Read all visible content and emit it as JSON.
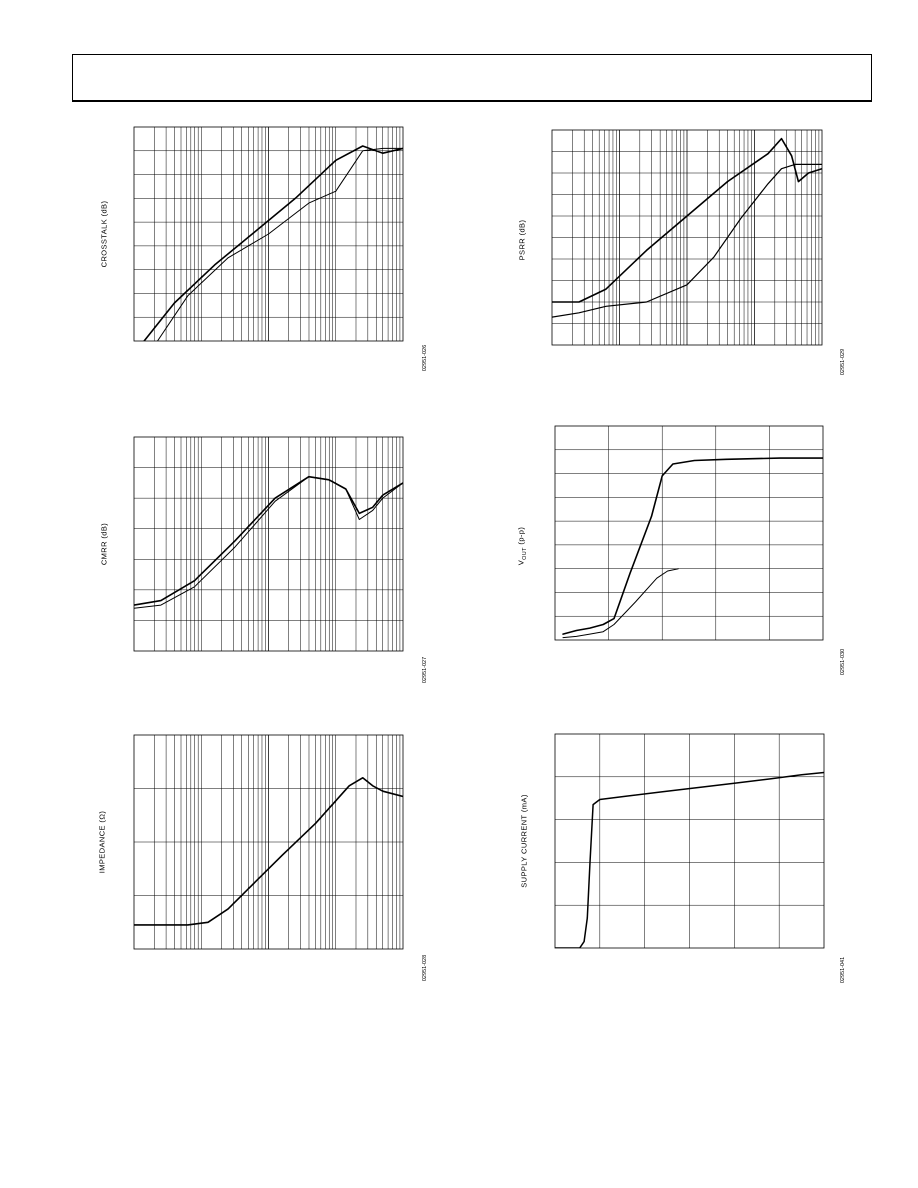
{
  "charts": [
    {
      "id": "crosstalk",
      "ylabel": "CROSSTALK (dB)",
      "figure_code": "02951-026"
    },
    {
      "id": "psrr",
      "ylabel": "PSRR (dB)",
      "figure_code": "02951-029"
    },
    {
      "id": "cmrr",
      "ylabel": "CMRR (dB)",
      "figure_code": "02951-027"
    },
    {
      "id": "vout",
      "ylabel_main": "V",
      "ylabel_sub": "OUT",
      "ylabel_tail": " (p-p)",
      "figure_code": "02951-030"
    },
    {
      "id": "impedance",
      "ylabel": "IMPEDANCE (Ω)",
      "figure_code": "02951-028"
    },
    {
      "id": "supply",
      "ylabel": "SUPPLY CURRENT (mA)",
      "figure_code": "02951-041"
    }
  ],
  "chart_data": [
    {
      "type": "line",
      "ylabel": "CROSSTALK (dB)",
      "xscale": "log",
      "grid": true,
      "xlim": [
        0,
        4
      ],
      "ylim": [
        0,
        9
      ],
      "series": [
        {
          "x": [
            0.15,
            0.6,
            1.2,
            1.8,
            2.4,
            3.0,
            3.4,
            3.7,
            4.0
          ],
          "y": [
            0.0,
            1.6,
            3.2,
            4.6,
            6.0,
            7.6,
            8.2,
            7.9,
            8.1
          ]
        },
        {
          "x": [
            0.35,
            0.8,
            1.4,
            2.0,
            2.6,
            3.0,
            3.4,
            3.7,
            4.0
          ],
          "y": [
            0.0,
            1.9,
            3.5,
            4.5,
            5.8,
            6.3,
            8.0,
            8.1,
            8.1
          ]
        }
      ]
    },
    {
      "type": "line",
      "ylabel": "PSRR (dB)",
      "xscale": "log",
      "grid": true,
      "xlim": [
        0,
        4
      ],
      "ylim": [
        0,
        10
      ],
      "series": [
        {
          "x": [
            0.0,
            0.4,
            0.8,
            1.4,
            2.0,
            2.6,
            3.2,
            3.4,
            3.55,
            3.65,
            3.8,
            4.0
          ],
          "y": [
            2.0,
            2.0,
            2.6,
            4.4,
            6.0,
            7.6,
            8.9,
            9.6,
            8.8,
            7.6,
            8.0,
            8.2
          ]
        },
        {
          "x": [
            0.0,
            0.4,
            0.8,
            1.4,
            2.0,
            2.4,
            2.8,
            3.2,
            3.4,
            3.6,
            4.0
          ],
          "y": [
            1.3,
            1.5,
            1.8,
            2.0,
            2.8,
            4.1,
            5.9,
            7.5,
            8.2,
            8.4,
            8.4
          ]
        }
      ]
    },
    {
      "type": "line",
      "ylabel": "CMRR (dB)",
      "xscale": "log",
      "grid": true,
      "xlim": [
        0,
        4
      ],
      "ylim": [
        0,
        7
      ],
      "series": [
        {
          "x": [
            0.0,
            0.4,
            0.9,
            1.5,
            2.1,
            2.6,
            2.9,
            3.15,
            3.35,
            3.55,
            3.7,
            4.0
          ],
          "y": [
            1.5,
            1.65,
            2.3,
            3.6,
            5.0,
            5.7,
            5.6,
            5.3,
            4.5,
            4.7,
            5.1,
            5.5
          ]
        },
        {
          "x": [
            0.0,
            0.4,
            0.9,
            1.5,
            2.1,
            2.6,
            2.9,
            3.15,
            3.35,
            3.55,
            3.7,
            4.0
          ],
          "y": [
            1.4,
            1.5,
            2.1,
            3.4,
            4.9,
            5.7,
            5.6,
            5.3,
            4.3,
            4.6,
            5.0,
            5.5
          ]
        }
      ]
    },
    {
      "type": "line",
      "ylabel": "VOUT (p-p)",
      "grid": true,
      "xlim": [
        0,
        5
      ],
      "ylim": [
        0,
        9
      ],
      "series": [
        {
          "x": [
            0.15,
            0.4,
            0.65,
            0.9,
            1.1,
            1.4,
            1.8,
            2.0,
            2.2,
            2.6,
            3.2,
            4.2,
            5.0
          ],
          "y": [
            0.25,
            0.4,
            0.5,
            0.65,
            0.9,
            2.8,
            5.2,
            6.9,
            7.4,
            7.55,
            7.6,
            7.65,
            7.65
          ]
        },
        {
          "x": [
            0.15,
            0.4,
            0.65,
            0.9,
            1.1,
            1.5,
            1.9,
            2.1,
            2.3
          ],
          "y": [
            0.1,
            0.15,
            0.25,
            0.35,
            0.65,
            1.6,
            2.6,
            2.9,
            3.0
          ]
        }
      ]
    },
    {
      "type": "line",
      "ylabel": "IMPEDANCE (Ω)",
      "xscale": "log",
      "grid": true,
      "xlim": [
        0,
        4
      ],
      "ylim": [
        0,
        4
      ],
      "series": [
        {
          "x": [
            0.0,
            0.8,
            1.1,
            1.4,
            1.8,
            2.2,
            2.7,
            3.2,
            3.4,
            3.55,
            3.7,
            4.0
          ],
          "y": [
            0.45,
            0.45,
            0.5,
            0.75,
            1.25,
            1.75,
            2.35,
            3.05,
            3.2,
            3.05,
            2.95,
            2.85
          ]
        }
      ]
    },
    {
      "type": "line",
      "ylabel": "SUPPLY CURRENT (mA)",
      "grid": true,
      "xlim": [
        0,
        6
      ],
      "ylim": [
        0,
        5
      ],
      "series": [
        {
          "x": [
            0.0,
            0.55,
            0.65,
            0.72,
            0.78,
            0.85,
            1.0,
            1.6,
            2.4,
            3.2,
            4.0,
            4.8,
            5.5,
            6.0
          ],
          "y": [
            0.0,
            0.0,
            0.15,
            0.7,
            2.0,
            3.35,
            3.47,
            3.55,
            3.65,
            3.75,
            3.85,
            3.95,
            4.05,
            4.1
          ]
        }
      ]
    }
  ]
}
